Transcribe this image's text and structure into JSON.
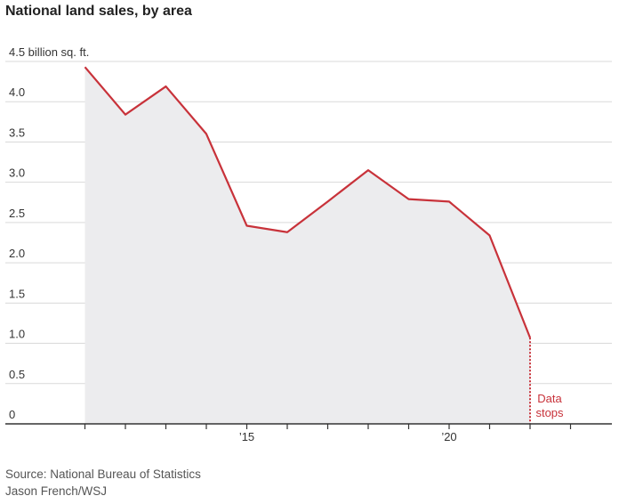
{
  "chart_data": {
    "type": "area",
    "title": "National land sales, by area",
    "unit_label": "4.5 billion sq. ft.",
    "x": [
      2011,
      2012,
      2013,
      2014,
      2015,
      2016,
      2017,
      2018,
      2019,
      2020,
      2021,
      2022
    ],
    "values": [
      4.43,
      3.84,
      4.19,
      3.6,
      2.46,
      2.38,
      2.76,
      3.15,
      2.79,
      2.76,
      2.34,
      1.07
    ],
    "y_ticks": [
      {
        "value": 0,
        "label": "0"
      },
      {
        "value": 0.5,
        "label": "0.5"
      },
      {
        "value": 1.0,
        "label": "1.0"
      },
      {
        "value": 1.5,
        "label": "1.5"
      },
      {
        "value": 2.0,
        "label": "2.0"
      },
      {
        "value": 2.5,
        "label": "2.5"
      },
      {
        "value": 3.0,
        "label": "3.0"
      },
      {
        "value": 3.5,
        "label": "3.5"
      },
      {
        "value": 4.0,
        "label": "4.0"
      }
    ],
    "x_ticks": [
      2011,
      2012,
      2013,
      2014,
      2015,
      2016,
      2017,
      2018,
      2019,
      2020,
      2021,
      2022,
      2023
    ],
    "x_tick_labels": [
      {
        "value": 2015,
        "label": "’15"
      },
      {
        "value": 2020,
        "label": "’20"
      }
    ],
    "ylim": [
      0,
      4.5
    ],
    "xlim": [
      2010,
      2024
    ],
    "grid": true,
    "annotation": {
      "lines": [
        "Data",
        "stops"
      ],
      "x": 2022
    },
    "colors": {
      "line": "#c8323a",
      "area": "#ececee",
      "grid": "#d9d9d9",
      "axis": "#333333"
    }
  },
  "footer": {
    "source": "Source: National Bureau of Statistics",
    "credit": "Jason French/WSJ"
  }
}
